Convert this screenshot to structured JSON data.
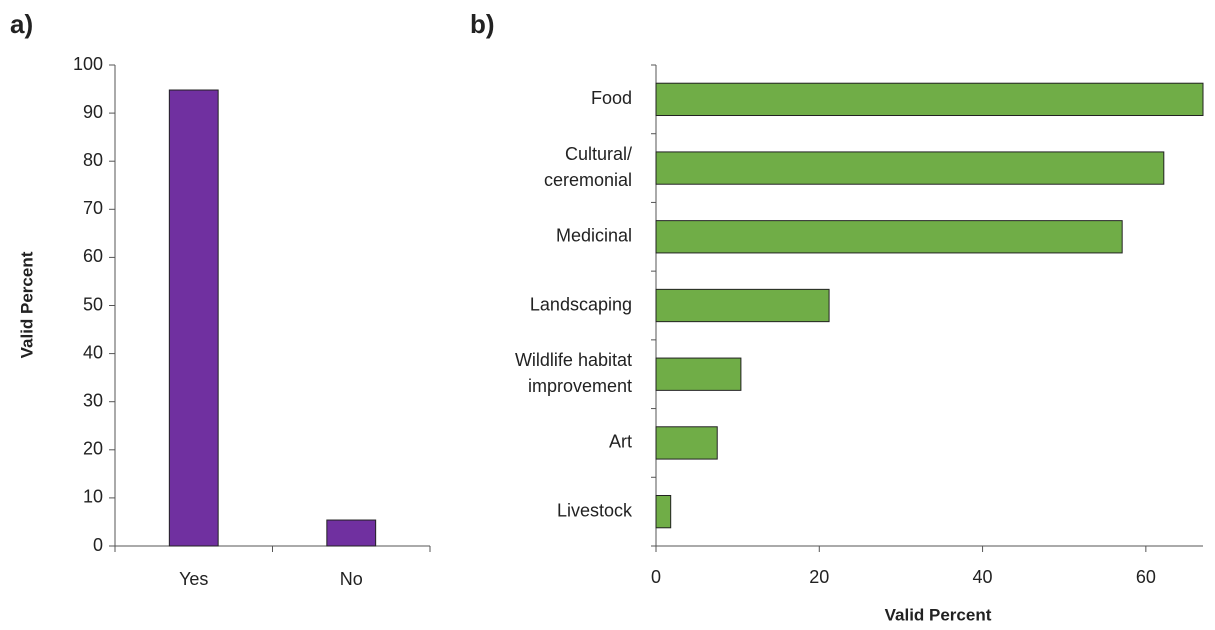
{
  "chart_data": [
    {
      "type": "bar",
      "panel": "a)",
      "categories": [
        "Yes",
        "No"
      ],
      "values": [
        94.8,
        5.4
      ],
      "color": "#7030a0",
      "ylabel": "Valid Percent",
      "ylim": [
        0,
        100
      ],
      "yticks": [
        0,
        10,
        20,
        30,
        40,
        50,
        60,
        70,
        80,
        90,
        100
      ]
    },
    {
      "type": "barh",
      "panel": "b)",
      "categories": [
        "Food",
        "Cultural/ ceremonial",
        "Medicinal",
        "Landscaping",
        "Wildlife habitat improvement",
        "Art",
        "Livestock"
      ],
      "values": [
        67,
        62.2,
        57.1,
        21.2,
        10.4,
        7.5,
        1.8
      ],
      "color": "#70ad47",
      "xlabel": "Valid Percent",
      "xlim": [
        0,
        67
      ],
      "xticks": [
        0,
        20,
        40,
        60
      ]
    }
  ]
}
